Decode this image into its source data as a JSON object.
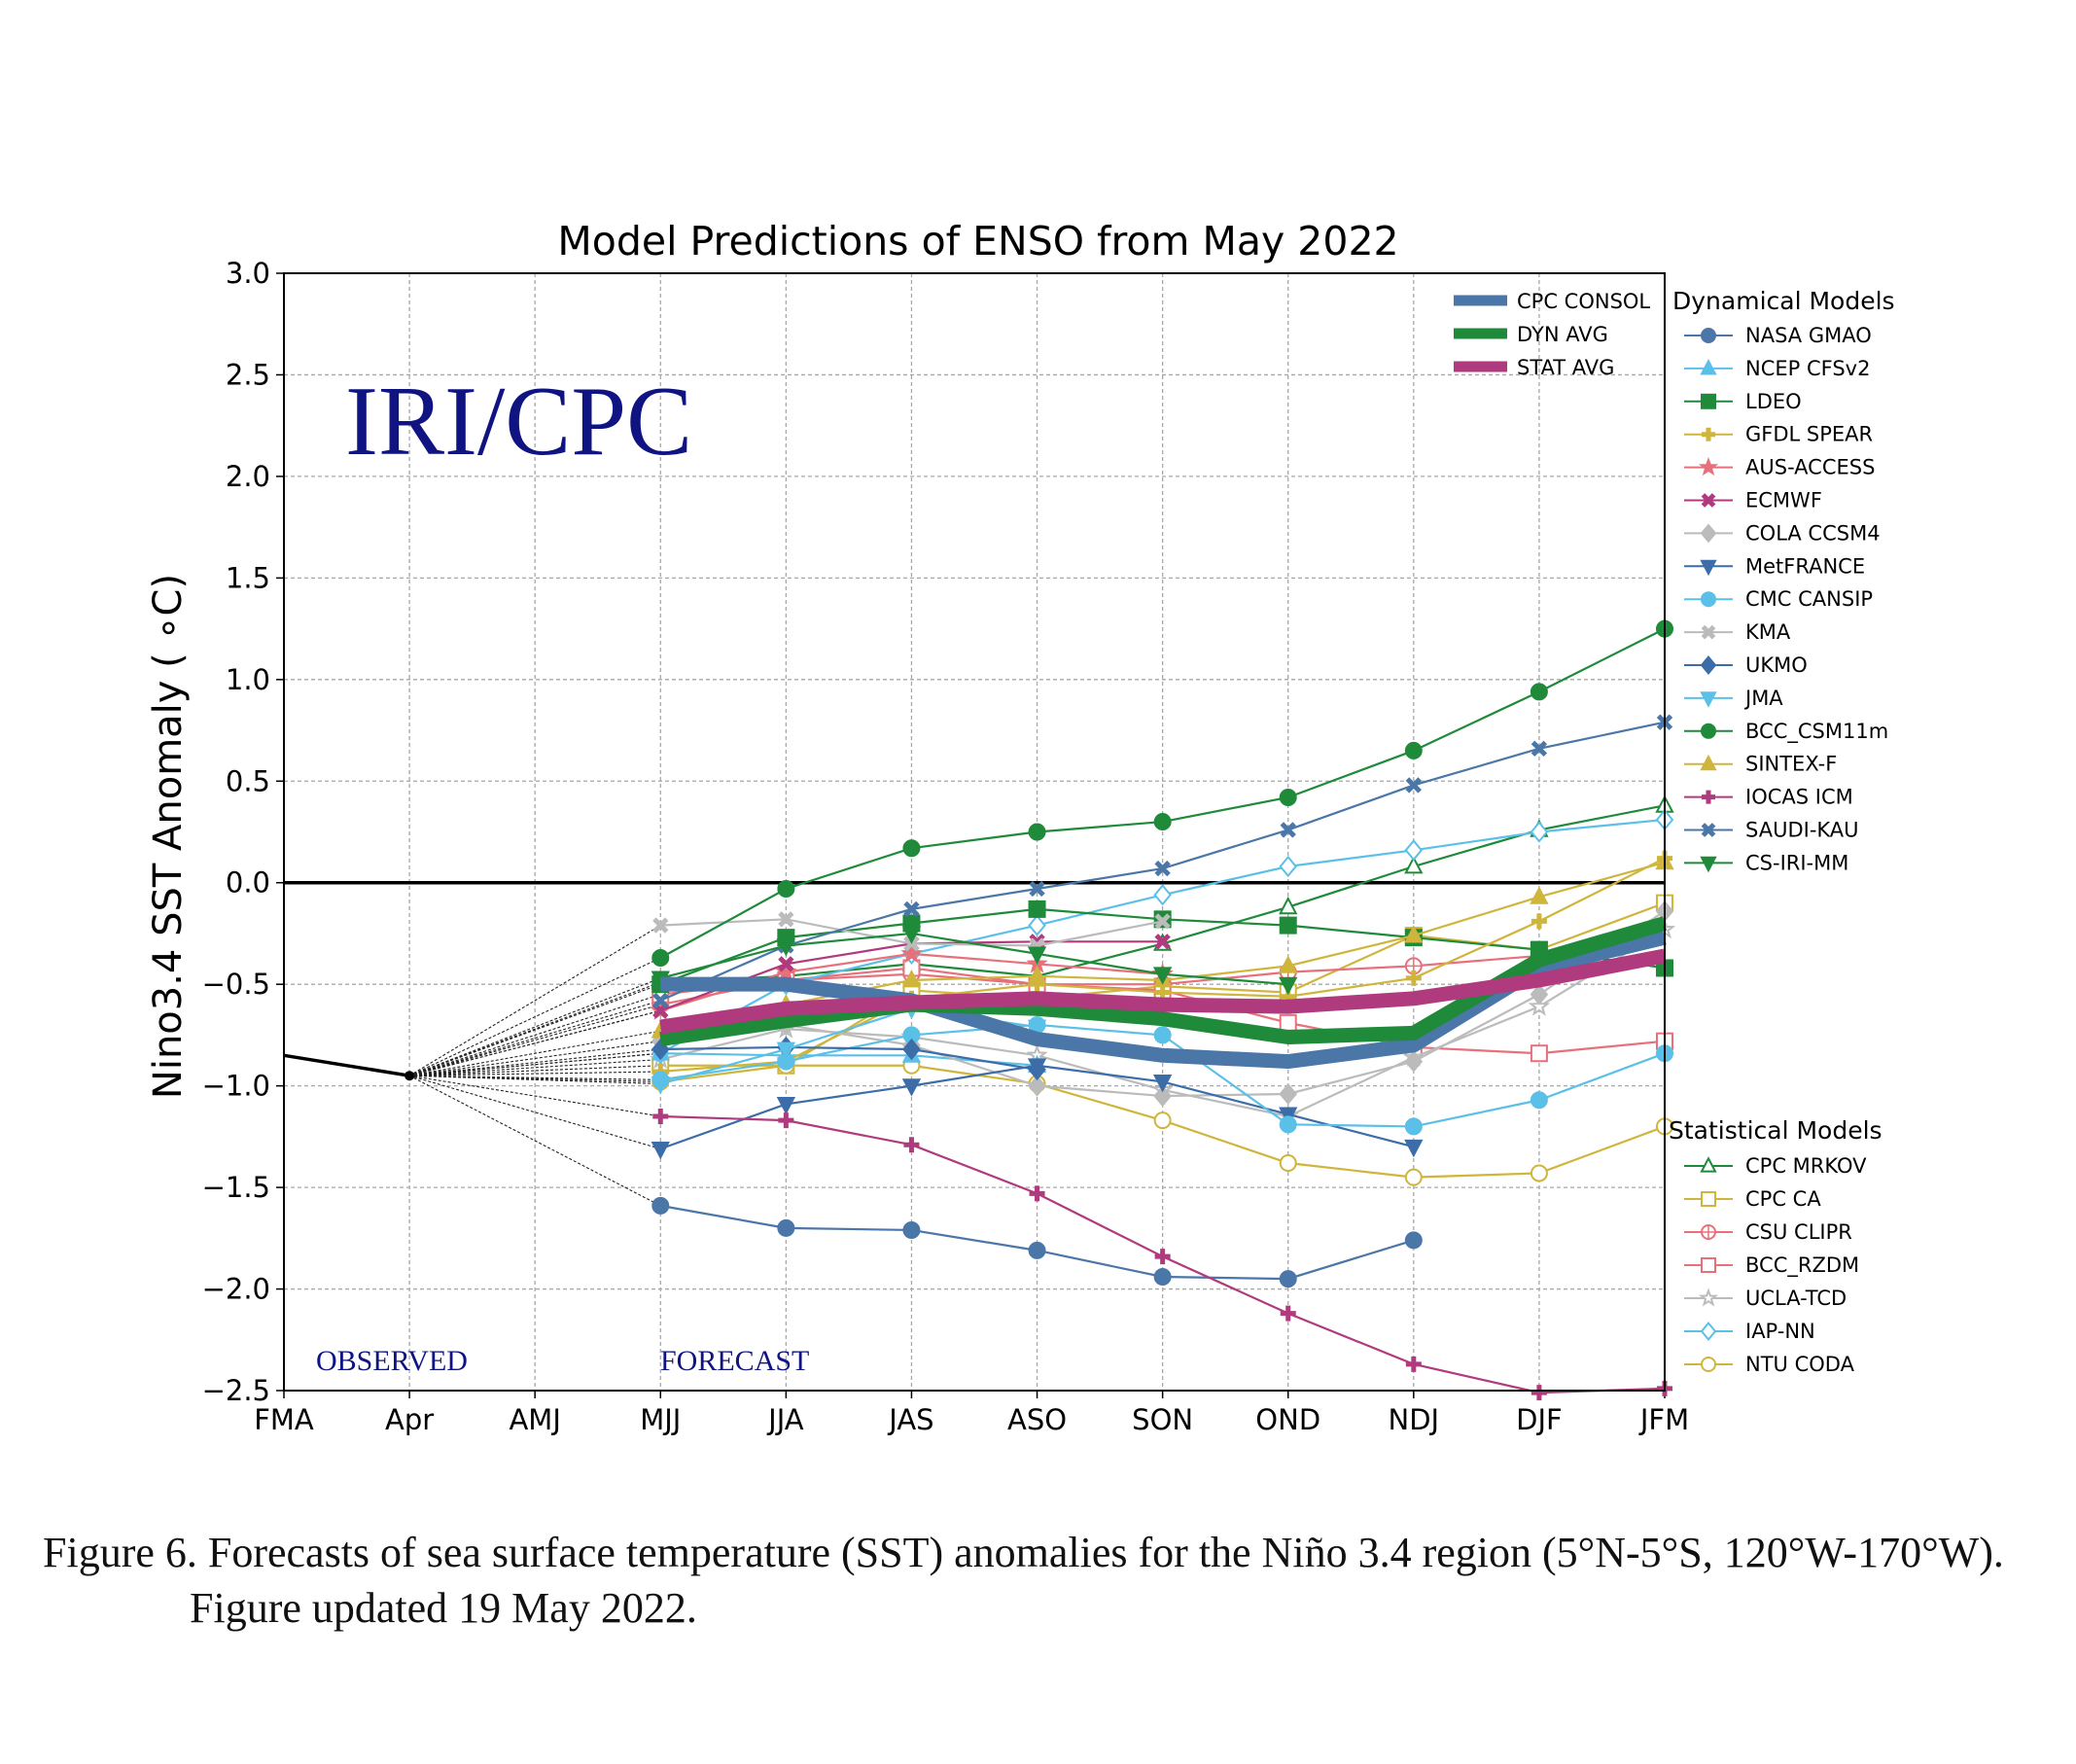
{
  "caption": "Figure 6. Forecasts of sea surface temperature (SST) anomalies for the Niño 3.4 region (5°N-5°S, 120°W-170°W). Figure updated 19 May 2022.",
  "chart_data": {
    "type": "line",
    "title": "Model Predictions of ENSO from May 2022",
    "ylabel": "Nino3.4 SST Anomaly ( ∘C)",
    "xlabel": "",
    "categories": [
      "FMA",
      "Apr",
      "AMJ",
      "MJJ",
      "JJA",
      "JAS",
      "ASO",
      "SON",
      "OND",
      "NDJ",
      "DJF",
      "JFM"
    ],
    "yticks": [
      "3.0",
      "2.5",
      "2.0",
      "1.5",
      "1.0",
      "0.5",
      "0.0",
      "−0.5",
      "−1.0",
      "−1.5",
      "−2.0",
      "−2.5"
    ],
    "ylim": [
      -2.5,
      3.0
    ],
    "grid": true,
    "watermark": "IRI/CPC",
    "observed_label": "OBSERVED",
    "forecast_label": "FORECAST",
    "dynamical_title": "Dynamical Models",
    "statistical_title": "Statistical Models",
    "observed": [
      -0.85,
      -0.95
    ],
    "averages": [
      {
        "name": "CPC CONSOL",
        "color": "#4a76a8",
        "values": [
          null,
          null,
          null,
          -0.5,
          -0.5,
          -0.58,
          -0.77,
          -0.85,
          -0.88,
          -0.8,
          -0.42,
          -0.27
        ]
      },
      {
        "name": "DYN AVG",
        "color": "#1e8a3a",
        "values": [
          null,
          null,
          null,
          -0.77,
          -0.68,
          -0.6,
          -0.62,
          -0.67,
          -0.76,
          -0.74,
          -0.38,
          -0.2
        ]
      },
      {
        "name": "STAT AVG",
        "color": "#b03a7e",
        "values": [
          null,
          null,
          null,
          -0.71,
          -0.62,
          -0.59,
          -0.57,
          -0.6,
          -0.61,
          -0.57,
          -0.48,
          -0.36
        ]
      }
    ],
    "dynamical": [
      {
        "name": "NASA GMAO",
        "color": "#4a76a8",
        "marker": "circle",
        "fill": true,
        "values": [
          null,
          null,
          null,
          -1.59,
          -1.7,
          -1.71,
          -1.81,
          -1.94,
          -1.95,
          -1.76,
          null,
          null
        ]
      },
      {
        "name": "NCEP CFSv2",
        "color": "#5bc0e8",
        "marker": "triangle-up",
        "fill": true,
        "values": [
          null,
          null,
          null,
          -0.84,
          -0.85,
          -0.85,
          -0.9,
          null,
          null,
          null,
          null,
          null
        ]
      },
      {
        "name": "LDEO",
        "color": "#1e8a3a",
        "marker": "square",
        "fill": true,
        "values": [
          null,
          null,
          null,
          -0.5,
          -0.27,
          -0.2,
          -0.13,
          -0.18,
          -0.21,
          -0.27,
          -0.33,
          -0.42
        ]
      },
      {
        "name": "GFDL SPEAR",
        "color": "#cfb53b",
        "marker": "plus",
        "fill": true,
        "values": [
          null,
          null,
          null,
          -0.93,
          -0.88,
          -0.57,
          -0.5,
          -0.54,
          -0.56,
          -0.47,
          -0.19,
          0.12
        ]
      },
      {
        "name": "AUS-ACCESS",
        "color": "#e8707a",
        "marker": "star",
        "fill": true,
        "values": [
          null,
          null,
          null,
          -0.63,
          -0.44,
          -0.35,
          -0.4,
          -0.45,
          null,
          null,
          null,
          null
        ]
      },
      {
        "name": "ECMWF",
        "color": "#b03a7e",
        "marker": "x",
        "fill": true,
        "values": [
          null,
          null,
          null,
          -0.63,
          -0.4,
          -0.3,
          -0.29,
          -0.29,
          null,
          null,
          null,
          null
        ]
      },
      {
        "name": "COLA CCSM4",
        "color": "#bbbbbb",
        "marker": "diamond",
        "fill": true,
        "values": [
          null,
          null,
          null,
          -0.78,
          -0.7,
          -0.8,
          -1.0,
          -1.05,
          -1.04,
          -0.88,
          -0.55,
          -0.14
        ]
      },
      {
        "name": "MetFRANCE",
        "color": "#3d6da8",
        "marker": "triangle-down",
        "fill": true,
        "values": [
          null,
          null,
          null,
          -1.31,
          -1.09,
          -1.0,
          -0.9,
          -0.98,
          -1.14,
          -1.3,
          null,
          null
        ]
      },
      {
        "name": "CMC CANSIP",
        "color": "#5bc0e8",
        "marker": "circle",
        "fill": true,
        "values": [
          null,
          null,
          null,
          -0.97,
          -0.88,
          -0.75,
          -0.7,
          -0.75,
          -1.19,
          -1.2,
          -1.07,
          -0.84
        ]
      },
      {
        "name": "KMA",
        "color": "#bbbbbb",
        "marker": "x",
        "fill": true,
        "values": [
          null,
          null,
          null,
          -0.21,
          -0.18,
          -0.3,
          -0.31,
          -0.19,
          null,
          null,
          null,
          null
        ]
      },
      {
        "name": "UKMO",
        "color": "#3d6da8",
        "marker": "diamond",
        "fill": true,
        "values": [
          null,
          null,
          null,
          -0.82,
          -0.81,
          -0.82,
          -0.92,
          null,
          null,
          null,
          null,
          null
        ]
      },
      {
        "name": "JMA",
        "color": "#5bc0e8",
        "marker": "triangle-down",
        "fill": true,
        "values": [
          null,
          null,
          null,
          -0.99,
          -0.82,
          -0.62,
          -0.71,
          null,
          null,
          null,
          null,
          null
        ]
      },
      {
        "name": "BCC_CSM11m",
        "color": "#1e8a3a",
        "marker": "circle",
        "fill": true,
        "values": [
          null,
          null,
          null,
          -0.37,
          -0.03,
          0.17,
          0.25,
          0.3,
          0.42,
          0.65,
          0.94,
          1.25
        ]
      },
      {
        "name": "SINTEX-F",
        "color": "#cfb53b",
        "marker": "triangle-up",
        "fill": true,
        "values": [
          null,
          null,
          null,
          -0.73,
          -0.6,
          -0.48,
          -0.46,
          -0.48,
          -0.41,
          -0.26,
          -0.07,
          0.1
        ]
      },
      {
        "name": "IOCAS ICM",
        "color": "#b03a7e",
        "marker": "plus",
        "fill": true,
        "values": [
          null,
          null,
          null,
          -1.15,
          -1.17,
          -1.29,
          -1.53,
          -1.84,
          -2.12,
          -2.37,
          -2.51,
          -2.49
        ]
      },
      {
        "name": "SAUDI-KAU",
        "color": "#4a76a8",
        "marker": "x",
        "fill": true,
        "values": [
          null,
          null,
          null,
          -0.58,
          -0.31,
          -0.13,
          -0.03,
          0.07,
          0.26,
          0.48,
          0.66,
          0.79
        ]
      },
      {
        "name": "CS-IRI-MM",
        "color": "#1e8a3a",
        "marker": "triangle-down",
        "fill": true,
        "values": [
          null,
          null,
          null,
          -0.47,
          -0.31,
          -0.25,
          -0.35,
          -0.45,
          -0.5,
          null,
          null,
          null
        ]
      }
    ],
    "statistical": [
      {
        "name": "CPC MRKOV",
        "color": "#1e8a3a",
        "marker": "triangle-up",
        "fill": false,
        "values": [
          null,
          null,
          null,
          -0.49,
          -0.46,
          -0.4,
          -0.46,
          -0.3,
          -0.12,
          0.08,
          0.26,
          0.38
        ]
      },
      {
        "name": "CPC CA",
        "color": "#cfb53b",
        "marker": "square",
        "fill": false,
        "values": [
          null,
          null,
          null,
          -0.9,
          -0.9,
          -0.53,
          -0.57,
          -0.51,
          -0.54,
          -0.26,
          -0.33,
          -0.1
        ]
      },
      {
        "name": "CSU CLIPR",
        "color": "#e8707a",
        "marker": "circle-plus",
        "fill": false,
        "values": [
          null,
          null,
          null,
          -0.6,
          -0.48,
          -0.45,
          -0.5,
          -0.5,
          -0.44,
          -0.41,
          -0.36,
          null
        ]
      },
      {
        "name": "BCC_RZDM",
        "color": "#e8707a",
        "marker": "square",
        "fill": false,
        "values": [
          null,
          null,
          null,
          -0.55,
          -0.48,
          -0.42,
          -0.5,
          -0.53,
          -0.69,
          -0.81,
          -0.84,
          -0.78
        ]
      },
      {
        "name": "UCLA-TCD",
        "color": "#bbbbbb",
        "marker": "star",
        "fill": false,
        "values": [
          null,
          null,
          null,
          -0.87,
          -0.72,
          -0.76,
          -0.85,
          -1.02,
          -1.15,
          -0.86,
          -0.61,
          -0.23
        ]
      },
      {
        "name": "IAP-NN",
        "color": "#5bc0e8",
        "marker": "diamond",
        "fill": false,
        "values": [
          null,
          null,
          null,
          -0.84,
          -0.5,
          -0.35,
          -0.21,
          -0.06,
          0.08,
          0.16,
          0.25,
          0.31
        ]
      },
      {
        "name": "NTU CODA",
        "color": "#cfb53b",
        "marker": "circle",
        "fill": false,
        "values": [
          null,
          null,
          null,
          -0.98,
          -0.9,
          -0.9,
          -0.99,
          -1.17,
          -1.38,
          -1.45,
          -1.43,
          -1.2
        ]
      }
    ]
  }
}
